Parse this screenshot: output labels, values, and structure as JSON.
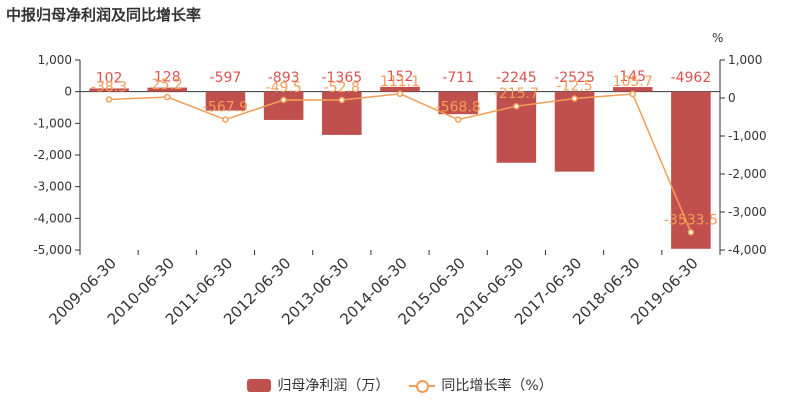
{
  "header": {
    "title": "中报归母净利润及同比增长率"
  },
  "chart_data": {
    "type": "bar",
    "categories": [
      "2009-06-30",
      "2010-06-30",
      "2011-06-30",
      "2012-06-30",
      "2013-06-30",
      "2014-06-30",
      "2015-06-30",
      "2016-06-30",
      "2017-06-30",
      "2018-06-30",
      "2019-06-30"
    ],
    "series": [
      {
        "name": "归母净利润（万）",
        "type": "bar",
        "axis": "left",
        "values": [
          102,
          128,
          -597,
          -893,
          -1365,
          152,
          -711,
          -2245,
          -2525,
          145,
          -4962
        ],
        "labels": [
          "102",
          "128",
          "-597",
          "-893",
          "-1365",
          "152",
          "-711",
          "-2245",
          "-2525",
          "145",
          "-4962"
        ]
      },
      {
        "name": "同比增长率（%）",
        "type": "line",
        "axis": "right",
        "values": [
          -38.3,
          25.2,
          -567.9,
          -49.5,
          -52.8,
          111.1,
          -568.8,
          -215.7,
          -12.5,
          105.7,
          -3533.5
        ],
        "labels": [
          "-38.3",
          "25.2",
          "-567.9",
          "-49.5",
          "-52.8",
          "111.1",
          "-568.8",
          "-215.7",
          "-12.5",
          "105.7",
          "-3533.5"
        ]
      }
    ],
    "y_left": {
      "ylim": [
        -5000,
        1000
      ],
      "ticks": [
        "1,000",
        "0",
        "-1,000",
        "-2,000",
        "-3,000",
        "-4,000",
        "-5,000"
      ]
    },
    "y_right": {
      "unit": "%",
      "ylim": [
        -4000,
        1000
      ],
      "ticks": [
        "1,000",
        "0",
        "-1,000",
        "-2,000",
        "-3,000",
        "-4,000"
      ]
    },
    "colors": {
      "bar": "#c0504d",
      "line": "#f59d56",
      "bar_label": "#d9534f",
      "axis": "#333333"
    },
    "grid": false,
    "legend_position": "bottom"
  }
}
